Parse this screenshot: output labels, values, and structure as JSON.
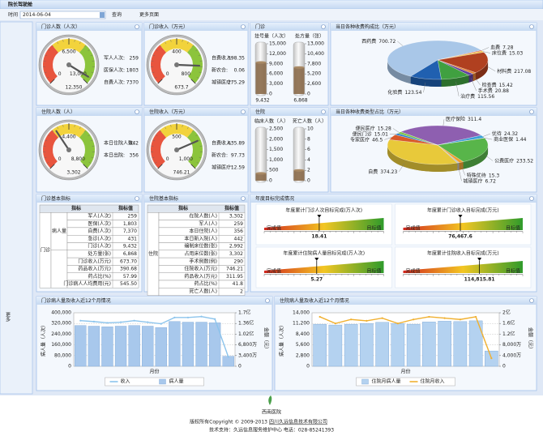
{
  "header": {
    "title": "院长驾驶舱",
    "time_label": "时间",
    "date": "2014-06-04",
    "query": "查询",
    "more_pages": "更多页面"
  },
  "sidebar": {
    "more": "更多"
  },
  "chart_data": [
    {
      "type": "gauge",
      "title": "门诊人数（人次）",
      "ylim": [
        0,
        13000
      ],
      "yticks": [
        0,
        {
          "value": 6500,
          "label": "6,500"
        },
        {
          "value": 13000,
          "label": "13,000"
        }
      ],
      "value": 12350,
      "value_label": "12,350",
      "items": [
        {
          "label": "军人人次:",
          "value": 259
        },
        {
          "label": "医保人次:",
          "value": 1803
        },
        {
          "label": "自费人次:",
          "value": 7370
        }
      ]
    },
    {
      "type": "gauge",
      "title": "门诊收入（万元）",
      "ylim": [
        0,
        800
      ],
      "yticks": [
        0,
        400,
        800
      ],
      "value": 673.7,
      "items": [
        {
          "label": "自费收入:",
          "value": 398.35
        },
        {
          "label": "新农合:",
          "value": 0.06
        },
        {
          "label": "城镇医疗:",
          "value": 275.29
        }
      ]
    },
    {
      "type": "cylinder",
      "title": "门诊",
      "color": "#8a6a4a",
      "columns": [
        {
          "label": "挂号量（人次）",
          "ylim": [
            0,
            15000
          ],
          "yticks": [
            0,
            {
              "value": 3000,
              "label": "3,000"
            },
            {
              "value": 6000,
              "label": "6,000"
            },
            {
              "value": 9000,
              "label": "9,000"
            },
            {
              "value": 12000,
              "label": "12,000"
            },
            {
              "value": 15000,
              "label": "15,000"
            }
          ],
          "value": 9432,
          "value_label": "9,432"
        },
        {
          "label": "处方量（张）",
          "ylim": [
            0,
            13000
          ],
          "yticks": [
            0,
            {
              "value": 2600,
              "label": "2,600"
            },
            {
              "value": 5200,
              "label": "5,200"
            },
            {
              "value": 7800,
              "label": "7,800"
            },
            {
              "value": 10400,
              "label": "10,400"
            },
            {
              "value": 13000,
              "label": "13,000"
            }
          ],
          "value": 6868,
          "value_label": "6,868"
        }
      ]
    },
    {
      "type": "pie",
      "title": "当日各种收费构成比（万元）",
      "categories": [
        "西药费",
        "血费",
        "床位费",
        "材料费",
        "检查费",
        "手术费",
        "治疗费",
        "化验费"
      ],
      "values": [
        700.72,
        7.28,
        15.03,
        217.08,
        15.42,
        20.88,
        115.56,
        123.54
      ],
      "colors": [
        "#a9c7e8",
        "#d03030",
        "#f0c040",
        "#b04020",
        "#e08030",
        "#6040a0",
        "#40a040",
        "#2060b0"
      ]
    },
    {
      "type": "gauge",
      "title": "住院人数（人）",
      "ylim": [
        0,
        8800
      ],
      "yticks": [
        0,
        {
          "value": 4400,
          "label": "4,400"
        },
        {
          "value": 8800,
          "label": "8,800"
        }
      ],
      "value": 3302,
      "value_label": "3,302",
      "items": [
        {
          "label": "本日住院人数:",
          "value": 442
        },
        {
          "label": "本日出院:",
          "value": 356
        }
      ]
    },
    {
      "type": "gauge",
      "title": "住院收入（万元）",
      "ylim": [
        0,
        1000
      ],
      "yticks": [
        0,
        500,
        {
          "value": 1000,
          "label": "1,000"
        }
      ],
      "value": 746.21,
      "items": [
        {
          "label": "自费收入:",
          "value": 635.89
        },
        {
          "label": "新农合:",
          "value": 97.73
        },
        {
          "label": "城镇医疗:",
          "value": 12.59
        }
      ]
    },
    {
      "type": "cylinder",
      "title": "住院",
      "color": "#8a6a4a",
      "columns": [
        {
          "label": "临床人数（人）",
          "ylim": [
            0,
            2500
          ],
          "yticks": [
            0,
            500,
            {
              "value": 1000,
              "label": "1,000"
            },
            {
              "value": 1500,
              "label": "1,500"
            },
            {
              "value": 2000,
              "label": "2,000"
            },
            {
              "value": 2500,
              "label": "2,500"
            }
          ],
          "value": 356
        },
        {
          "label": "死亡人数（人）",
          "ylim": [
            0,
            10
          ],
          "yticks": [
            0,
            2,
            4,
            6,
            8,
            10
          ],
          "value": 2
        }
      ]
    },
    {
      "type": "pie",
      "title": "当日各种收费类型占比（万元）",
      "categories": [
        "医疗保险",
        "优待",
        "商业医保",
        "公费医疗",
        "特殊优待",
        "城镇医疗",
        "自费",
        "专家医疗",
        "便民门诊",
        "便民医疗"
      ],
      "values": [
        311.4,
        24.32,
        1.44,
        233.52,
        15.3,
        6.72,
        374.23,
        46.5,
        15.01,
        15.28
      ],
      "colors": [
        "#8e5fb0",
        "#3aa0d8",
        "#e24c3c",
        "#58b54a",
        "#f0a030",
        "#c0c0c0",
        "#e8c93a",
        "#d85a2a",
        "#2c7fc8",
        "#7ac143"
      ]
    },
    {
      "type": "target",
      "title": "年度目标完成情况",
      "low_label": "完成值",
      "high_label": "目标值",
      "items": [
        {
          "label": "年度累计门诊人次目标完成(万人次)",
          "xlim": [
            0,
            40
          ],
          "value": 18.41
        },
        {
          "label": "年度累计门诊收入目标完成(万元)",
          "xlim": [
            0,
            160000
          ],
          "value": 76467.6,
          "value_label": "76,467.6"
        },
        {
          "label": "年度累计住院病人量目标完成(万人次)",
          "xlim": [
            0,
            12
          ],
          "value": 5.27
        },
        {
          "label": "年度累计住院收入目标完成(万元)",
          "xlim": [
            0,
            180000
          ],
          "value": 114815.81,
          "value_label": "114,815.81"
        }
      ]
    },
    {
      "type": "bar_line",
      "title": "门诊病人量及收入近12个月情况",
      "ylabel": "病人量（人次）",
      "y2label": "金额（元）",
      "xlabel": "月份",
      "categories": [
        null,
        null,
        null,
        null,
        null,
        null,
        null,
        null,
        null,
        null,
        null,
        null
      ],
      "ylim": [
        0,
        400000
      ],
      "yticks": [
        0,
        {
          "value": 80000,
          "label": "80,000"
        },
        {
          "value": 160000,
          "label": "160,000"
        },
        {
          "value": 240000,
          "label": "240,000"
        },
        {
          "value": 320000,
          "label": "320,000"
        },
        {
          "value": 400000,
          "label": "400,000"
        }
      ],
      "y2lim": [
        0,
        170000000
      ],
      "y2ticks": [
        0,
        {
          "value": 34000000,
          "label": "3,400万"
        },
        {
          "value": 68000000,
          "label": "6,800万"
        },
        {
          "value": 102000000,
          "label": "1.02亿"
        },
        {
          "value": 136000000,
          "label": "1.36亿"
        },
        {
          "value": 170000000,
          "label": "1.7亿"
        }
      ],
      "grid": true,
      "series": [
        {
          "name": "收入",
          "type": "line",
          "axis": "y2",
          "color": "#8cc4ec",
          "values": [
            145000000,
            142000000,
            138000000,
            140000000,
            145000000,
            140000000,
            135000000,
            155000000,
            155000000,
            158000000,
            150000000,
            30000000
          ]
        },
        {
          "name": "病人量",
          "type": "bar",
          "color": "#a8c8ec",
          "values": [
            305000,
            300000,
            295000,
            300000,
            305000,
            300000,
            290000,
            335000,
            330000,
            330000,
            325000,
            75000
          ]
        }
      ]
    },
    {
      "type": "bar_line",
      "title": "住院病人量及收入近12个月情况",
      "ylabel": "病人量（人次）",
      "y2label": "金额（元）",
      "xlabel": "月份",
      "categories": [
        null,
        null,
        null,
        null,
        null,
        null,
        null,
        null,
        null,
        null,
        null,
        null
      ],
      "ylim": [
        0,
        14000
      ],
      "yticks": [
        0,
        {
          "value": 2800,
          "label": "2,800"
        },
        {
          "value": 5600,
          "label": "5,600"
        },
        {
          "value": 8400,
          "label": "8,400"
        },
        {
          "value": 11200,
          "label": "11,200"
        },
        {
          "value": 14000,
          "label": "14,000"
        }
      ],
      "y2lim": [
        0,
        200000000
      ],
      "y2ticks": [
        0,
        {
          "value": 40000000,
          "label": "4,000万"
        },
        {
          "value": 80000000,
          "label": "8,000万"
        },
        {
          "value": 120000000,
          "label": "1.2亿"
        },
        {
          "value": 160000000,
          "label": "1.6亿"
        },
        {
          "value": 200000000,
          "label": "2亿"
        }
      ],
      "grid": true,
      "series": [
        {
          "name": "住院月病人量",
          "type": "bar",
          "color": "#b4d2f0",
          "values": [
            11000,
            10800,
            11000,
            11200,
            11500,
            11200,
            11000,
            11600,
            11800,
            11700,
            11900,
            4000
          ]
        },
        {
          "name": "住院月收入",
          "type": "line",
          "axis": "y2",
          "color": "#f0b030",
          "values": [
            185000000,
            160000000,
            175000000,
            170000000,
            180000000,
            160000000,
            175000000,
            185000000,
            180000000,
            175000000,
            185000000,
            30000000
          ]
        }
      ]
    }
  ],
  "tables": [
    {
      "title": "门诊基本指标",
      "columns": [
        "指标",
        "指标值"
      ],
      "group": "门诊",
      "sections": [
        {
          "label": "病人量",
          "rows": [
            [
              "军人(人次)",
              "259"
            ],
            [
              "医保(人次)",
              "1,803"
            ],
            [
              "自费(人次)",
              "7,370"
            ],
            [
              "急诊(人次)",
              "431"
            ],
            [
              "门诊(人次)",
              "9,432"
            ]
          ]
        },
        {
          "rows": [
            [
              "处方量(张)",
              "6,868"
            ],
            [
              "门诊收入(万元)",
              "673.70"
            ],
            [
              "药品收入(万元)",
              "390.68"
            ],
            [
              "药占比(%)",
              "57.99"
            ],
            [
              "门诊病人人均费用(元)",
              "545.50"
            ]
          ]
        }
      ]
    },
    {
      "title": "住院基本指标",
      "columns": [
        "指标",
        "指标值"
      ],
      "group": "住院",
      "sections": [
        {
          "rows": [
            [
              "在院人数(人)",
              "3,302"
            ],
            [
              "军人(人)",
              "259"
            ],
            [
              "本日住院(人)",
              "356"
            ],
            [
              "本日新入院(人)",
              "442"
            ],
            [
              "编制床位数(张)",
              "2,992"
            ],
            [
              "占用床位数(张)",
              "3,302"
            ],
            [
              "手术例数(例)",
              "290"
            ],
            [
              "住院收入(万元)",
              "746.21"
            ],
            [
              "药品收入(万元)",
              "311.95"
            ],
            [
              "药占比(%)",
              "41.8"
            ],
            [
              "死亡人数(人)",
              "2"
            ]
          ]
        }
      ]
    }
  ],
  "footer": {
    "hospital": "西南医院",
    "copyright": "版权所有Copyright © 2009-2013",
    "company": "四川久远信息技术有限公司",
    "support": "技术支持：久远信息服务维护中心 电话：028-85241393"
  }
}
